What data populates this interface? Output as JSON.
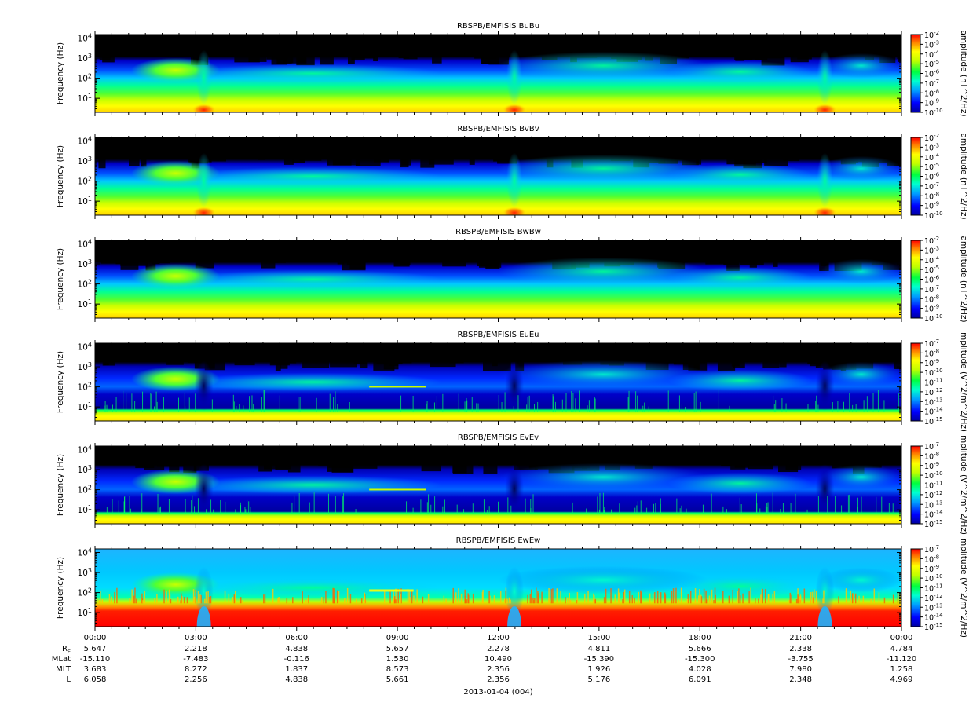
{
  "chart_data": {
    "type": "heatmap",
    "date_label": "2013-01-04 (004)",
    "x_ticks": [
      "00:00",
      "03:00",
      "06:00",
      "09:00",
      "12:00",
      "15:00",
      "18:00",
      "21:00",
      "00:00"
    ],
    "ephemeris": [
      {
        "label": "R",
        "subscript": "E",
        "values": [
          "5.647",
          "2.218",
          "4.838",
          "5.657",
          "2.278",
          "4.811",
          "5.666",
          "2.338",
          "4.784"
        ]
      },
      {
        "label": "MLat",
        "subscript": "",
        "values": [
          "-15.110",
          "-7.483",
          "-0.116",
          "1.530",
          "10.490",
          "-15.390",
          "-15.300",
          "-3.755",
          "-11.120"
        ]
      },
      {
        "label": "MLT",
        "subscript": "",
        "values": [
          "3.683",
          "8.272",
          "1.837",
          "8.573",
          "2.356",
          "1.926",
          "4.028",
          "7.980",
          "1.258"
        ]
      },
      {
        "label": "L",
        "subscript": "",
        "values": [
          "6.058",
          "2.256",
          "4.838",
          "5.661",
          "2.356",
          "5.176",
          "6.091",
          "2.348",
          "4.969"
        ]
      }
    ],
    "panels": [
      {
        "title": "RBSPB/EMFISIS  BuBu",
        "ylabel": "Frequency (Hz)",
        "ylim": [
          2,
          15000
        ],
        "y_log": true,
        "y_ticks": [
          {
            "base": "10",
            "exp": "1"
          },
          {
            "base": "10",
            "exp": "2"
          },
          {
            "base": "10",
            "exp": "3"
          },
          {
            "base": "10",
            "exp": "4"
          }
        ],
        "colorbar_label": "amplitude (nT^2/Hz)",
        "colorbar_range": [
          -10,
          -2
        ],
        "colorbar_ticks": [
          {
            "base": "10",
            "exp": "-2"
          },
          {
            "base": "10",
            "exp": "-3"
          },
          {
            "base": "10",
            "exp": "-4"
          },
          {
            "base": "10",
            "exp": "-5"
          },
          {
            "base": "10",
            "exp": "-6"
          },
          {
            "base": "10",
            "exp": "-7"
          },
          {
            "base": "10",
            "exp": "-8"
          },
          {
            "base": "10",
            "exp": "-9"
          },
          {
            "base": "10",
            "exp": "-10"
          }
        ]
      },
      {
        "title": "RBSPB/EMFISIS  BvBv",
        "ylabel": "Frequency (Hz)",
        "ylim": [
          2,
          15000
        ],
        "y_log": true,
        "y_ticks": [
          {
            "base": "10",
            "exp": "1"
          },
          {
            "base": "10",
            "exp": "2"
          },
          {
            "base": "10",
            "exp": "3"
          },
          {
            "base": "10",
            "exp": "4"
          }
        ],
        "colorbar_label": "amplitude (nT^2/Hz)",
        "colorbar_range": [
          -10,
          -2
        ],
        "colorbar_ticks": [
          {
            "base": "10",
            "exp": "-2"
          },
          {
            "base": "10",
            "exp": "-3"
          },
          {
            "base": "10",
            "exp": "-4"
          },
          {
            "base": "10",
            "exp": "-5"
          },
          {
            "base": "10",
            "exp": "-6"
          },
          {
            "base": "10",
            "exp": "-7"
          },
          {
            "base": "10",
            "exp": "-8"
          },
          {
            "base": "10",
            "exp": "-9"
          },
          {
            "base": "10",
            "exp": "-10"
          }
        ]
      },
      {
        "title": "RBSPB/EMFISIS  BwBw",
        "ylabel": "Frequency (Hz)",
        "ylim": [
          2,
          15000
        ],
        "y_log": true,
        "y_ticks": [
          {
            "base": "10",
            "exp": "1"
          },
          {
            "base": "10",
            "exp": "2"
          },
          {
            "base": "10",
            "exp": "3"
          },
          {
            "base": "10",
            "exp": "4"
          }
        ],
        "colorbar_label": "amplitude (nT^2/Hz)",
        "colorbar_range": [
          -10,
          -2
        ],
        "colorbar_ticks": [
          {
            "base": "10",
            "exp": "-2"
          },
          {
            "base": "10",
            "exp": "-3"
          },
          {
            "base": "10",
            "exp": "-4"
          },
          {
            "base": "10",
            "exp": "-5"
          },
          {
            "base": "10",
            "exp": "-6"
          },
          {
            "base": "10",
            "exp": "-7"
          },
          {
            "base": "10",
            "exp": "-8"
          },
          {
            "base": "10",
            "exp": "-9"
          },
          {
            "base": "10",
            "exp": "-10"
          }
        ]
      },
      {
        "title": "RBSPB/EMFISIS  EuEu",
        "ylabel": "Frequency (Hz)",
        "ylim": [
          2,
          15000
        ],
        "y_log": true,
        "y_ticks": [
          {
            "base": "10",
            "exp": "1"
          },
          {
            "base": "10",
            "exp": "2"
          },
          {
            "base": "10",
            "exp": "3"
          },
          {
            "base": "10",
            "exp": "4"
          }
        ],
        "colorbar_label": "mplitude (V^2/m^2/Hz)",
        "colorbar_range": [
          -15,
          -7
        ],
        "colorbar_ticks": [
          {
            "base": "10",
            "exp": "-7"
          },
          {
            "base": "10",
            "exp": "-8"
          },
          {
            "base": "10",
            "exp": "-9"
          },
          {
            "base": "10",
            "exp": "-10"
          },
          {
            "base": "10",
            "exp": "-11"
          },
          {
            "base": "10",
            "exp": "-12"
          },
          {
            "base": "10",
            "exp": "-13"
          },
          {
            "base": "10",
            "exp": "-14"
          },
          {
            "base": "10",
            "exp": "-15"
          }
        ]
      },
      {
        "title": "RBSPB/EMFISIS  EvEv",
        "ylabel": "Frequency (Hz)",
        "ylim": [
          2,
          15000
        ],
        "y_log": true,
        "y_ticks": [
          {
            "base": "10",
            "exp": "1"
          },
          {
            "base": "10",
            "exp": "2"
          },
          {
            "base": "10",
            "exp": "3"
          },
          {
            "base": "10",
            "exp": "4"
          }
        ],
        "colorbar_label": "mplitude (V^2/m^2/Hz)",
        "colorbar_range": [
          -15,
          -7
        ],
        "colorbar_ticks": [
          {
            "base": "10",
            "exp": "-7"
          },
          {
            "base": "10",
            "exp": "-8"
          },
          {
            "base": "10",
            "exp": "-9"
          },
          {
            "base": "10",
            "exp": "-10"
          },
          {
            "base": "10",
            "exp": "-11"
          },
          {
            "base": "10",
            "exp": "-12"
          },
          {
            "base": "10",
            "exp": "-13"
          },
          {
            "base": "10",
            "exp": "-14"
          },
          {
            "base": "10",
            "exp": "-15"
          }
        ]
      },
      {
        "title": "RBSPB/EMFISIS  EwEw",
        "ylabel": "Frequency (Hz)",
        "ylim": [
          2,
          15000
        ],
        "y_log": true,
        "y_ticks": [
          {
            "base": "10",
            "exp": "1"
          },
          {
            "base": "10",
            "exp": "2"
          },
          {
            "base": "10",
            "exp": "3"
          },
          {
            "base": "10",
            "exp": "4"
          }
        ],
        "colorbar_label": "mplitude (V^2/m^2/Hz)",
        "colorbar_range": [
          -15,
          -7
        ],
        "colorbar_ticks": [
          {
            "base": "10",
            "exp": "-7"
          },
          {
            "base": "10",
            "exp": "-8"
          },
          {
            "base": "10",
            "exp": "-9"
          },
          {
            "base": "10",
            "exp": "-10"
          },
          {
            "base": "10",
            "exp": "-11"
          },
          {
            "base": "10",
            "exp": "-12"
          },
          {
            "base": "10",
            "exp": "-13"
          },
          {
            "base": "10",
            "exp": "-14"
          },
          {
            "base": "10",
            "exp": "-15"
          }
        ]
      }
    ]
  }
}
